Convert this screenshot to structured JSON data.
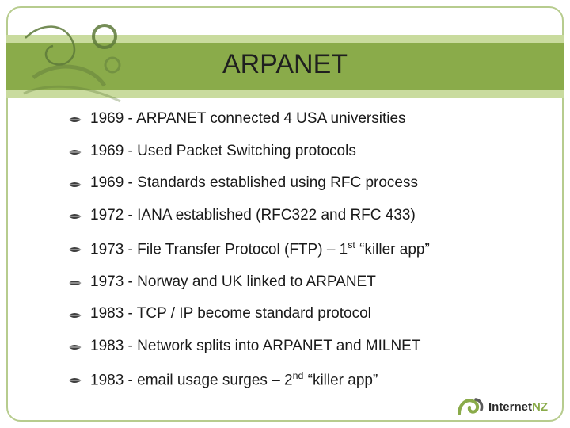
{
  "title": "ARPANET",
  "colors": {
    "band": "#8aab4a",
    "band_light": "#c9db9e",
    "border": "#b7cc8e",
    "text": "#1a1a1a",
    "bullet": "#3e3e3e"
  },
  "bullets": [
    {
      "html": "1969 - ARPANET connected 4 USA universities"
    },
    {
      "html": "1969 - Used Packet Switching protocols"
    },
    {
      "html": "1969 - Standards established using RFC process"
    },
    {
      "html": "1972 - IANA established (RFC322 and RFC 433)"
    },
    {
      "html": "1973 - File Transfer Protocol (FTP) – 1<sup>st</sup> “killer app”"
    },
    {
      "html": "1973 - Norway and UK linked to ARPANET"
    },
    {
      "html": "1983 - TCP / IP become standard protocol"
    },
    {
      "html": "1983 - Network splits into ARPANET and MILNET"
    },
    {
      "html": "1983 - email usage surges – 2<sup>nd</sup> “killer app”"
    }
  ],
  "footer": {
    "brand_prefix": "Internet",
    "brand_suffix": "NZ"
  }
}
